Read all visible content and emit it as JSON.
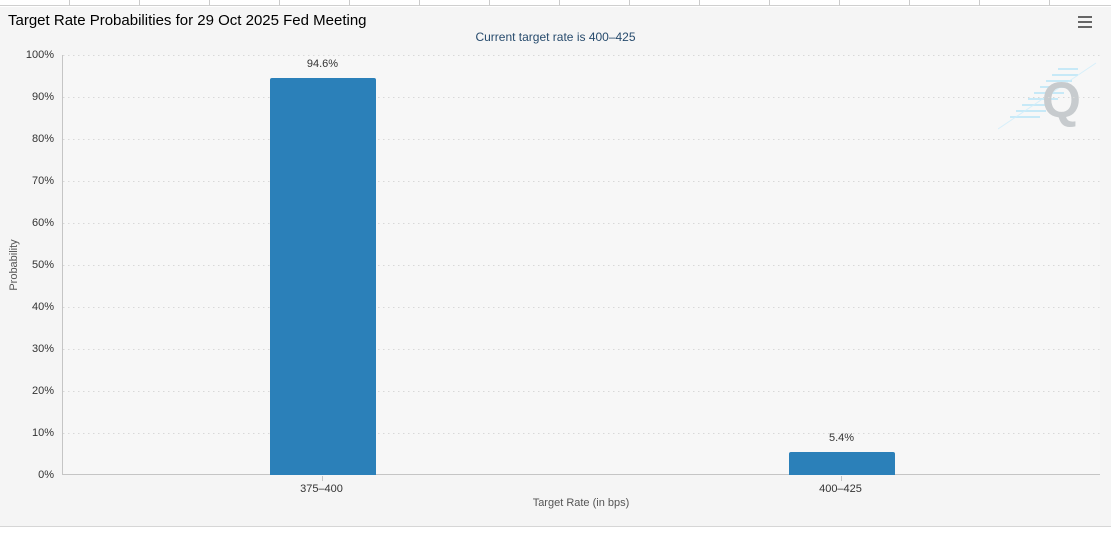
{
  "page": {
    "title": "Target Rate Probabilities for 29 Oct 2025 Fed Meeting"
  },
  "toolbar": {
    "menu_icon": "hamburger-menu"
  },
  "chart": {
    "subtitle": "Current target rate is 400–425",
    "y_axis_title": "Probability",
    "x_axis_title": "Target Rate (in bps)",
    "watermark_letter": "Q"
  },
  "chart_data": {
    "type": "bar",
    "title": "Target Rate Probabilities for 29 Oct 2025 Fed Meeting",
    "subtitle": "Current target rate is 400–425",
    "categories": [
      "375–400",
      "400–425"
    ],
    "values": [
      94.6,
      5.4
    ],
    "data_labels": [
      "94.6%",
      "5.4%"
    ],
    "xlabel": "Target Rate (in bps)",
    "ylabel": "Probability",
    "ylim": [
      0,
      100
    ],
    "y_tick_step": 10,
    "y_tick_labels": [
      "0%",
      "10%",
      "20%",
      "30%",
      "40%",
      "50%",
      "60%",
      "70%",
      "80%",
      "90%",
      "100%"
    ],
    "grid": "horizontal-dotted",
    "legend": "none",
    "bar_color": "#2b80b9"
  },
  "colors": {
    "bar": "#2b80b9",
    "container_bg": "#f5f5f5",
    "plot_bg": "#f7f7f7",
    "axis_line": "#c5c5c5",
    "grid_dot": "#d8d8d8",
    "title_text": "#000000",
    "subtitle_text": "#274b6d",
    "tick_text": "#333333",
    "axis_title_text": "#555555",
    "menu_icon": "#666666",
    "watermark_q": "#c7cbce",
    "watermark_hatch": "#aee2f7"
  }
}
